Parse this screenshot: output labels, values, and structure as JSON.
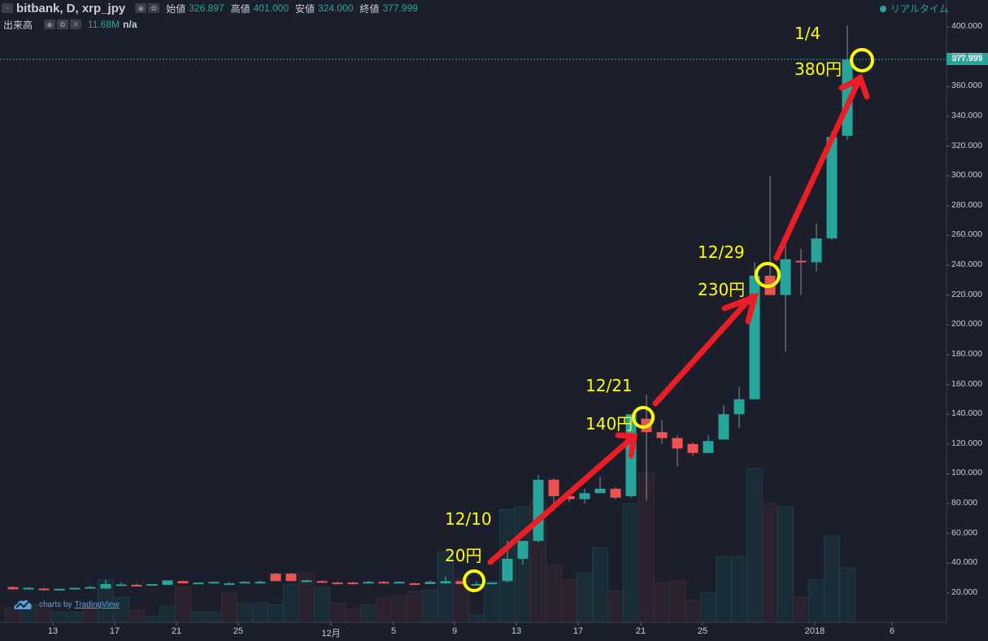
{
  "header": {
    "symbol_title": "bitbank, D, xrp_jpy",
    "open_label": "始値",
    "open_value": "326.897",
    "high_label": "高値",
    "high_value": "401.000",
    "low_label": "安値",
    "low_value": "324.000",
    "close_label": "終値",
    "close_value": "377.999",
    "volume_label": "出来高",
    "volume_value": "11.68M",
    "volume_extra": "n/a",
    "realtime_label": "リアルタイム"
  },
  "watermark": {
    "prefix": "charts by",
    "brand": "TradingView"
  },
  "price_tag": "377.999",
  "annotations": [
    {
      "date": "12/10",
      "price": "20円"
    },
    {
      "date": "12/21",
      "price": "140円"
    },
    {
      "date": "12/29",
      "price": "230円"
    },
    {
      "date": "1/4",
      "price": "380円"
    }
  ],
  "colors": {
    "up": "#26a69a",
    "down": "#ef5350",
    "background": "#1b1f2b",
    "annotation": "#ffff00",
    "arrow": "#ee1c25"
  },
  "chart_data": {
    "type": "candlestick",
    "title": "bitbank, D, xrp_jpy",
    "xlabel": "",
    "ylabel": "",
    "ylim": [
      0,
      410
    ],
    "y_ticks": [
      "400.000",
      "380.000",
      "360.000",
      "340.000",
      "320.000",
      "300.000",
      "280.000",
      "260.000",
      "240.000",
      "220.000",
      "200.000",
      "180.000",
      "160.000",
      "140.000",
      "120.000",
      "100.000",
      "80.000",
      "60.000",
      "40.000",
      "20.000"
    ],
    "x_ticks": [
      "13",
      "17",
      "21",
      "25",
      "12月",
      "5",
      "9",
      "13",
      "17",
      "21",
      "25",
      "2018",
      "6"
    ],
    "last_price": 377.999,
    "candles": [
      [
        24,
        24.5,
        22.5,
        22.5
      ],
      [
        23,
        23.8,
        22.5,
        23.5
      ],
      [
        23,
        23.5,
        21.5,
        22
      ],
      [
        22.5,
        23,
        22.5,
        22.8
      ],
      [
        23,
        23.5,
        22.5,
        23.5
      ],
      [
        23.5,
        25,
        23,
        24
      ],
      [
        23,
        29,
        23,
        26
      ],
      [
        25.5,
        27,
        25,
        25.8
      ],
      [
        25.5,
        26.5,
        25,
        25
      ],
      [
        25,
        26,
        25,
        26
      ],
      [
        25.5,
        28.5,
        25.5,
        28.5
      ],
      [
        28,
        28.5,
        26.5,
        26.5
      ],
      [
        26.5,
        27,
        26,
        27
      ],
      [
        26.5,
        27.5,
        26,
        27.5
      ],
      [
        26.5,
        27.5,
        26,
        26.5
      ],
      [
        27,
        28,
        27,
        27.5
      ],
      [
        27.5,
        28.5,
        27,
        27.5
      ],
      [
        33,
        33.5,
        28,
        28
      ],
      [
        33,
        33.5,
        28,
        28
      ],
      [
        28,
        29,
        27,
        28.5
      ],
      [
        28,
        28.5,
        27,
        27.5
      ],
      [
        27,
        27.5,
        26.5,
        26.5
      ],
      [
        27,
        27.5,
        26,
        26.5
      ],
      [
        27.5,
        28.5,
        27,
        27.5
      ],
      [
        27.5,
        28,
        26.5,
        26.5
      ],
      [
        27,
        28,
        27,
        27.5
      ],
      [
        26.5,
        27,
        25.5,
        26
      ],
      [
        26,
        28.5,
        26,
        27.5
      ],
      [
        26.5,
        31,
        26,
        28
      ],
      [
        28,
        28,
        26,
        26
      ],
      [
        26,
        28,
        25.5,
        26
      ],
      [
        26.5,
        27,
        26,
        27
      ],
      [
        28,
        55,
        27,
        43
      ],
      [
        43,
        54,
        39,
        55
      ],
      [
        55,
        99,
        54,
        96
      ],
      [
        96,
        97,
        75,
        85
      ],
      [
        85,
        88,
        81,
        83
      ],
      [
        83,
        90,
        80,
        87
      ],
      [
        87,
        98,
        87,
        90
      ],
      [
        90,
        91,
        83,
        84
      ],
      [
        85,
        140,
        84,
        140
      ],
      [
        137,
        153,
        82,
        128
      ],
      [
        128,
        136,
        120,
        124
      ],
      [
        124,
        126,
        105,
        117
      ],
      [
        120,
        121,
        112,
        114
      ],
      [
        114,
        126,
        114,
        122
      ],
      [
        123,
        146,
        123,
        140
      ],
      [
        140,
        158,
        131,
        150
      ],
      [
        150,
        242,
        150,
        233
      ],
      [
        233,
        300,
        220,
        220
      ],
      [
        220,
        258,
        182,
        244
      ],
      [
        243,
        251,
        220,
        242
      ],
      [
        242,
        268,
        236,
        258
      ],
      [
        258,
        330,
        257,
        326
      ],
      [
        326.897,
        401,
        324,
        377.999
      ]
    ],
    "volume": [
      [
        10,
        "down"
      ],
      [
        12,
        "up"
      ],
      [
        12,
        "down"
      ],
      [
        7,
        "up"
      ],
      [
        7,
        "up"
      ],
      [
        12,
        "down"
      ],
      [
        29,
        "up"
      ],
      [
        17,
        "up"
      ],
      [
        8,
        "down"
      ],
      [
        4,
        "up"
      ],
      [
        11,
        "up"
      ],
      [
        24,
        "down"
      ],
      [
        7,
        "up"
      ],
      [
        7,
        "up"
      ],
      [
        20,
        "down"
      ],
      [
        13,
        "up"
      ],
      [
        13,
        "up"
      ],
      [
        12,
        "up"
      ],
      [
        26,
        "up"
      ],
      [
        34,
        "down"
      ],
      [
        24,
        "up"
      ],
      [
        13,
        "down"
      ],
      [
        9,
        "down"
      ],
      [
        12,
        "up"
      ],
      [
        16,
        "down"
      ],
      [
        18,
        "down"
      ],
      [
        21,
        "down"
      ],
      [
        22,
        "up"
      ],
      [
        48,
        "up"
      ],
      [
        30,
        "down"
      ],
      [
        5,
        "up"
      ],
      [
        28,
        "up"
      ],
      [
        77,
        "up"
      ],
      [
        79,
        "up"
      ],
      [
        84,
        "down"
      ],
      [
        39,
        "down"
      ],
      [
        29,
        "down"
      ],
      [
        34,
        "up"
      ],
      [
        51,
        "up"
      ],
      [
        21,
        "down"
      ],
      [
        81,
        "up"
      ],
      [
        102,
        "down"
      ],
      [
        27,
        "down"
      ],
      [
        28,
        "down"
      ],
      [
        15,
        "down"
      ],
      [
        20,
        "up"
      ],
      [
        45,
        "up"
      ],
      [
        45,
        "up"
      ],
      [
        105,
        "up"
      ],
      [
        81,
        "down"
      ],
      [
        79,
        "up"
      ],
      [
        17,
        "down"
      ],
      [
        29,
        "up"
      ],
      [
        59,
        "up"
      ],
      [
        37,
        "up"
      ]
    ]
  }
}
